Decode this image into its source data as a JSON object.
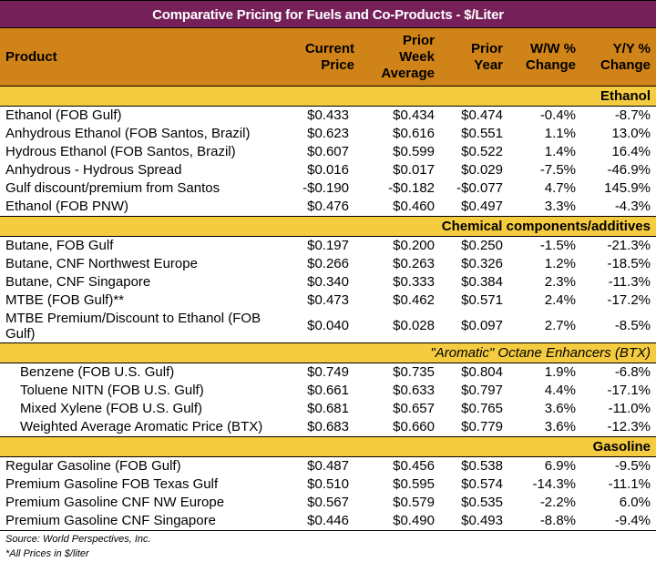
{
  "title": "Comparative Pricing for Fuels and Co-Products - $/Liter",
  "headers": {
    "product": "Product",
    "current_price": [
      "Current",
      "Price"
    ],
    "prior_week_average": [
      "Prior",
      "Week",
      "Average"
    ],
    "prior_year": [
      "Prior",
      "Year"
    ],
    "ww_change": [
      "W/W %",
      "Change"
    ],
    "yy_change": [
      "Y/Y %",
      "Change"
    ]
  },
  "sections": [
    {
      "name": "Ethanol",
      "rows": [
        {
          "product": "Ethanol (FOB Gulf)",
          "current": "$0.433",
          "prior_week": "$0.434",
          "prior_year": "$0.474",
          "ww": "-0.4%",
          "yy": "-8.7%"
        },
        {
          "product": "Anhydrous Ethanol (FOB Santos, Brazil)",
          "current": "$0.623",
          "prior_week": "$0.616",
          "prior_year": "$0.551",
          "ww": "1.1%",
          "yy": "13.0%"
        },
        {
          "product": "Hydrous Ethanol (FOB Santos, Brazil)",
          "current": "$0.607",
          "prior_week": "$0.599",
          "prior_year": "$0.522",
          "ww": "1.4%",
          "yy": "16.4%"
        },
        {
          "product": "Anhydrous - Hydrous Spread",
          "current": "$0.016",
          "prior_week": "$0.017",
          "prior_year": "$0.029",
          "ww": "-7.5%",
          "yy": "-46.9%"
        },
        {
          "product": "Gulf discount/premium from Santos",
          "current": "-$0.190",
          "prior_week": "-$0.182",
          "prior_year": "-$0.077",
          "ww": "4.7%",
          "yy": "145.9%"
        },
        {
          "product": "Ethanol (FOB PNW)",
          "current": "$0.476",
          "prior_week": "$0.460",
          "prior_year": "$0.497",
          "ww": "3.3%",
          "yy": "-4.3%"
        }
      ]
    },
    {
      "name": "Chemical components/additives",
      "rows": [
        {
          "product": "Butane, FOB Gulf",
          "current": "$0.197",
          "prior_week": "$0.200",
          "prior_year": "$0.250",
          "ww": "-1.5%",
          "yy": "-21.3%"
        },
        {
          "product": "Butane, CNF Northwest Europe",
          "current": "$0.266",
          "prior_week": "$0.263",
          "prior_year": "$0.326",
          "ww": "1.2%",
          "yy": "-18.5%"
        },
        {
          "product": "Butane, CNF Singapore",
          "current": "$0.340",
          "prior_week": "$0.333",
          "prior_year": "$0.384",
          "ww": "2.3%",
          "yy": "-11.3%"
        },
        {
          "product": "MTBE (FOB Gulf)**",
          "current": "$0.473",
          "prior_week": "$0.462",
          "prior_year": "$0.571",
          "ww": "2.4%",
          "yy": "-17.2%"
        },
        {
          "product": "MTBE Premium/Discount to Ethanol (FOB Gulf)",
          "current": "$0.040",
          "prior_week": "$0.028",
          "prior_year": "$0.097",
          "ww": "2.7%",
          "yy": "-8.5%"
        }
      ]
    },
    {
      "name": "\"Aromatic\" Octane Enhancers (BTX)",
      "rows": [
        {
          "product": "Benzene (FOB U.S. Gulf)",
          "current": "$0.749",
          "prior_week": "$0.735",
          "prior_year": "$0.804",
          "ww": "1.9%",
          "yy": "-6.8%"
        },
        {
          "product": "Toluene NITN (FOB U.S. Gulf)",
          "current": "$0.661",
          "prior_week": "$0.633",
          "prior_year": "$0.797",
          "ww": "4.4%",
          "yy": "-17.1%"
        },
        {
          "product": "Mixed Xylene (FOB U.S. Gulf)",
          "current": "$0.681",
          "prior_week": "$0.657",
          "prior_year": "$0.765",
          "ww": "3.6%",
          "yy": "-11.0%"
        },
        {
          "product": "Weighted Average Aromatic Price (BTX)",
          "current": "$0.683",
          "prior_week": "$0.660",
          "prior_year": "$0.779",
          "ww": "3.6%",
          "yy": "-12.3%"
        }
      ]
    },
    {
      "name": "Gasoline",
      "rows": [
        {
          "product": "Regular Gasoline (FOB Gulf)",
          "current": "$0.487",
          "prior_week": "$0.456",
          "prior_year": "$0.538",
          "ww": "6.9%",
          "yy": "-9.5%"
        },
        {
          "product": "Premium Gasoline FOB Texas Gulf",
          "current": "$0.510",
          "prior_week": "$0.595",
          "prior_year": "$0.574",
          "ww": "-14.3%",
          "yy": "-11.1%"
        },
        {
          "product": "Premium Gasoline CNF NW Europe",
          "current": "$0.567",
          "prior_week": "$0.579",
          "prior_year": "$0.535",
          "ww": "-2.2%",
          "yy": "6.0%"
        },
        {
          "product": "Premium Gasoline CNF Singapore",
          "current": "$0.446",
          "prior_week": "$0.490",
          "prior_year": "$0.493",
          "ww": "-8.8%",
          "yy": "-9.4%"
        }
      ]
    }
  ],
  "footnotes": {
    "source": "Source: World Perspectives, Inc.",
    "note": "*All Prices in $/liter"
  },
  "colors": {
    "title_bg": "#76205a",
    "header_bg": "#d08318",
    "section_bg": "#f5cc40"
  }
}
